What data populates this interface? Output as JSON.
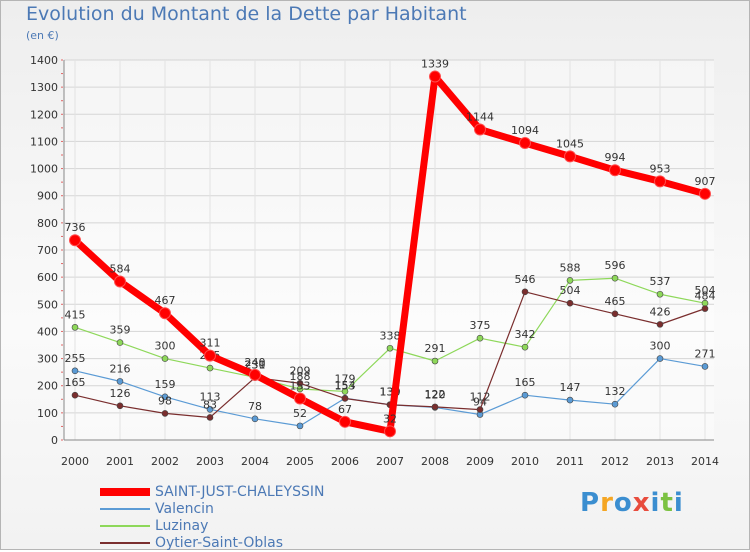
{
  "header": {
    "title": "Evolution du Montant de la Dette par Habitant",
    "subtitle": "(en €)"
  },
  "logo": {
    "text": "Proxiti",
    "colors": [
      "#3b8ed0",
      "#f5a623",
      "#3b8ed0",
      "#e84c3d",
      "#3b8ed0",
      "#7cc242",
      "#3b8ed0"
    ]
  },
  "chart_data": {
    "type": "line",
    "title": "Evolution du Montant de la Dette par Habitant",
    "ylabel": "(en €)",
    "xlabel": "",
    "categories": [
      "2000",
      "2001",
      "2002",
      "2003",
      "2004",
      "2005",
      "2006",
      "2007",
      "2008",
      "2009",
      "2010",
      "2011",
      "2012",
      "2013",
      "2014"
    ],
    "ylim": [
      0,
      1400
    ],
    "yticks": [
      0,
      100,
      200,
      300,
      400,
      500,
      600,
      700,
      800,
      900,
      1000,
      1100,
      1200,
      1300,
      1400
    ],
    "grid": true,
    "legend": "bottom-left",
    "series": [
      {
        "name": "SAINT-JUST-CHALEYSSIN",
        "color": "#ff0000",
        "values": [
          736,
          584,
          467,
          311,
          240,
          153,
          67,
          32,
          1339,
          1144,
          1094,
          1045,
          994,
          953,
          907
        ]
      },
      {
        "name": "Valencin",
        "color": "#5b9bd5",
        "values": [
          255,
          216,
          159,
          113,
          78,
          52,
          154,
          130,
          120,
          94,
          165,
          147,
          132,
          300,
          271
        ]
      },
      {
        "name": "Luzinay",
        "color": "#8ed85a",
        "values": [
          415,
          359,
          300,
          265,
          231,
          188,
          179,
          338,
          291,
          375,
          342,
          588,
          596,
          537,
          504
        ]
      },
      {
        "name": "Oytier-Saint-Oblas",
        "color": "#7a2e2e",
        "values": [
          165,
          126,
          98,
          83,
          230,
          209,
          153,
          130,
          122,
          112,
          546,
          504,
          465,
          426,
          484
        ]
      }
    ]
  }
}
